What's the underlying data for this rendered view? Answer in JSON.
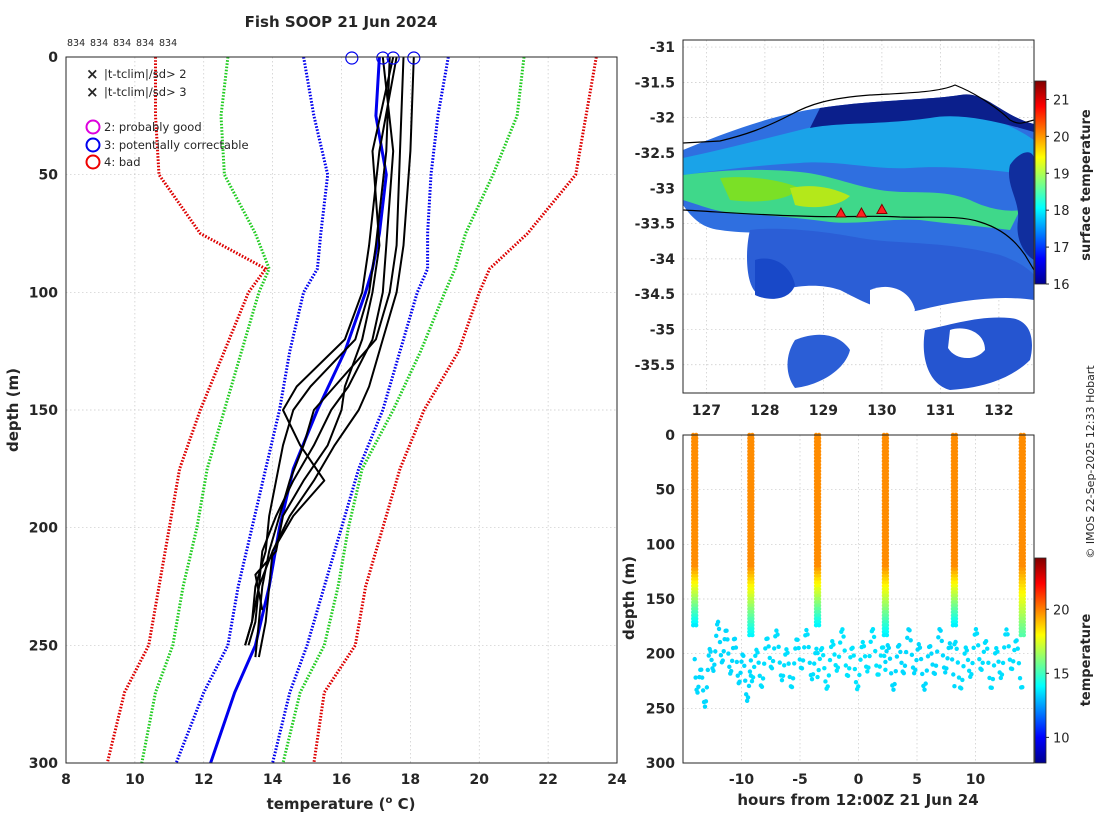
{
  "figure": {
    "title": "Fish SOOP 21 Jun 2024",
    "profile_counts": [
      "834",
      "834",
      "834",
      "834",
      "834"
    ],
    "credit": "© IMOS 22-Sep-2025 12:33 Hobart"
  },
  "colors": {
    "obs": "#000000",
    "clim_mean": "#0000ee",
    "sd2": "#22cc22",
    "sd3": "#dd0000",
    "flag2": "#dd00dd",
    "flag3": "#0000ee",
    "flag4": "#ee0000"
  },
  "legend": {
    "x_items": [
      {
        "symbol": "×",
        "label": "|t-tclim|/sd> 2",
        "color": "#22cc22"
      },
      {
        "symbol": "×",
        "label": "|t-tclim|/sd> 3",
        "color": "#ee0000"
      }
    ],
    "circle_items": [
      {
        "label": "2: probably good",
        "color": "#dd00dd"
      },
      {
        "label": "3: potentially correctable",
        "color": "#0000ee"
      },
      {
        "label": "4: bad",
        "color": "#ee0000"
      }
    ]
  },
  "chart_data": [
    {
      "id": "profile",
      "type": "line",
      "xlabel": "temperature (",
      "xlabel_sup": "o",
      "xlabel_end": " C)",
      "ylabel": "depth (m)",
      "xlim": [
        8,
        24
      ],
      "ylim": [
        300,
        0
      ],
      "xticks": [
        "8",
        "10",
        "12",
        "14",
        "16",
        "18",
        "20",
        "22",
        "24"
      ],
      "yticks": [
        "0",
        "50",
        "100",
        "150",
        "200",
        "250",
        "300"
      ],
      "grid": true,
      "depth": [
        0,
        25,
        50,
        75,
        90,
        100,
        125,
        150,
        175,
        200,
        225,
        250,
        270,
        300
      ],
      "series": [
        {
          "name": "clim-3sd-left",
          "color": "#dd0000",
          "dash": true,
          "temp": [
            10.6,
            10.6,
            10.7,
            11.9,
            13.8,
            13.3,
            12.6,
            11.9,
            11.3,
            11.0,
            10.7,
            10.4,
            9.7,
            9.2
          ]
        },
        {
          "name": "clim-2sd-left",
          "color": "#22cc22",
          "dash": true,
          "temp": [
            12.7,
            12.5,
            12.6,
            13.5,
            13.9,
            13.6,
            13.1,
            12.6,
            12.1,
            11.8,
            11.4,
            11.1,
            10.6,
            10.2
          ]
        },
        {
          "name": "clim-1sd-left",
          "color": "#0000ee",
          "dash": true,
          "temp": [
            14.9,
            15.2,
            15.6,
            15.4,
            15.3,
            14.9,
            14.5,
            14.2,
            13.8,
            13.4,
            13.0,
            12.7,
            12.0,
            11.2
          ]
        },
        {
          "name": "clim-mean",
          "color": "#0000ee",
          "dash": false,
          "temp": [
            17.1,
            17.0,
            17.3,
            17.1,
            16.9,
            16.7,
            16.1,
            15.3,
            14.6,
            14.2,
            13.9,
            13.5,
            12.9,
            12.2
          ]
        },
        {
          "name": "clim-1sd-right",
          "color": "#0000ee",
          "dash": true,
          "temp": [
            19.1,
            18.8,
            18.6,
            18.5,
            18.5,
            18.2,
            17.7,
            17.2,
            16.5,
            16.0,
            15.5,
            15.0,
            14.5,
            14.0
          ]
        },
        {
          "name": "clim-2sd-right",
          "color": "#22cc22",
          "dash": true,
          "temp": [
            21.3,
            21.1,
            20.4,
            19.6,
            19.3,
            19.0,
            18.3,
            17.5,
            16.6,
            16.2,
            15.9,
            15.5,
            14.8,
            14.3
          ]
        },
        {
          "name": "clim-3sd-right",
          "color": "#dd0000",
          "dash": true,
          "temp": [
            23.4,
            23.1,
            22.8,
            21.4,
            20.3,
            20.0,
            19.4,
            18.4,
            17.7,
            17.2,
            16.7,
            16.4,
            15.5,
            15.2
          ]
        }
      ],
      "observed_profiles": [
        {
          "depth": [
            0,
            40,
            80,
            100,
            120,
            140,
            150,
            165,
            180,
            195,
            210,
            225,
            240,
            255
          ],
          "temp": [
            17.8,
            17.7,
            17.6,
            17.4,
            17.0,
            15.8,
            15.2,
            14.9,
            14.5,
            14.2,
            13.9,
            13.7,
            13.6,
            13.5
          ]
        },
        {
          "depth": [
            0,
            40,
            80,
            100,
            120,
            140,
            150,
            165,
            180,
            195,
            210,
            225,
            240,
            255
          ],
          "temp": [
            18.1,
            18.0,
            17.8,
            17.6,
            17.2,
            16.8,
            16.5,
            15.8,
            15.2,
            14.5,
            14.0,
            13.9,
            13.8,
            13.6
          ]
        },
        {
          "depth": [
            0,
            40,
            80,
            100,
            120,
            140,
            150,
            165,
            180,
            195,
            210,
            225,
            240,
            250
          ],
          "temp": [
            17.4,
            17.3,
            17.0,
            16.8,
            16.4,
            15.1,
            14.6,
            14.3,
            14.1,
            13.9,
            13.8,
            13.5,
            13.4,
            13.2
          ]
        },
        {
          "depth": [
            0,
            40,
            80,
            100,
            120,
            140,
            150,
            165,
            180,
            195,
            210,
            225,
            240,
            250
          ],
          "temp": [
            17.2,
            17.5,
            17.3,
            17.2,
            16.9,
            16.2,
            15.7,
            15.2,
            14.6,
            14.1,
            13.7,
            13.6,
            13.5,
            13.3
          ]
        },
        {
          "depth": [
            0,
            40,
            80,
            100,
            120,
            140,
            150,
            165,
            180,
            195,
            210,
            225,
            240,
            250
          ],
          "temp": [
            17.6,
            17.1,
            16.8,
            16.6,
            16.1,
            14.7,
            14.3,
            14.8,
            15.5,
            14.6,
            14.0,
            13.6,
            13.4,
            13.2
          ]
        },
        {
          "depth": [
            0,
            40,
            80,
            100,
            120,
            140,
            150,
            165,
            180,
            195,
            210,
            220,
            235
          ],
          "temp": [
            17.5,
            16.9,
            17.1,
            16.9,
            16.6,
            16.1,
            16.0,
            15.6,
            14.9,
            14.3,
            14.1,
            13.5,
            13.7
          ]
        }
      ],
      "flag_markers": [
        {
          "temp": 16.3,
          "depth": 0
        },
        {
          "temp": 17.2,
          "depth": 0
        },
        {
          "temp": 17.5,
          "depth": 0
        },
        {
          "temp": 18.1,
          "depth": 0
        }
      ]
    },
    {
      "id": "sst-map",
      "type": "heatmap",
      "xticks": [
        "127",
        "128",
        "129",
        "130",
        "131",
        "132"
      ],
      "yticks": [
        "-31",
        "-31.5",
        "-32",
        "-32.5",
        "-33",
        "-33.5",
        "-34",
        "-34.5",
        "-35",
        "-35.5"
      ],
      "xlim": [
        126.6,
        132.6
      ],
      "ylim": [
        -35.9,
        -30.9
      ],
      "colorbar_label": "surface temperature",
      "colorbar_ticks": [
        "16",
        "17",
        "18",
        "19",
        "20",
        "21"
      ],
      "colorbar_range": [
        16,
        21.5
      ],
      "track_markers": [
        {
          "lon": 129.3,
          "lat": -33.35
        },
        {
          "lon": 129.65,
          "lat": -33.35
        },
        {
          "lon": 130.0,
          "lat": -33.3
        }
      ]
    },
    {
      "id": "time-depth",
      "type": "scatter",
      "xlabel": "hours from 12:00Z 21 Jun 24",
      "ylabel": "depth (m)",
      "xlim": [
        -15,
        15
      ],
      "ylim": [
        300,
        0
      ],
      "xticks": [
        "-10",
        "-5",
        "0",
        "5",
        "10"
      ],
      "yticks": [
        "0",
        "50",
        "100",
        "150",
        "200",
        "250",
        "300"
      ],
      "colorbar_label": "temperature",
      "colorbar_ticks": [
        "10",
        "15",
        "20"
      ],
      "colorbar_range": [
        8,
        24
      ],
      "casts": [
        {
          "t": -14.0,
          "min_temp": 13.4
        },
        {
          "t": -9.2,
          "min_temp": 13.5
        },
        {
          "t": -3.5,
          "min_temp": 13.6
        },
        {
          "t": 2.3,
          "min_temp": 13.4
        },
        {
          "t": 8.2,
          "min_temp": 13.5
        },
        {
          "t": 14.0,
          "min_temp": 15.0
        }
      ]
    }
  ]
}
